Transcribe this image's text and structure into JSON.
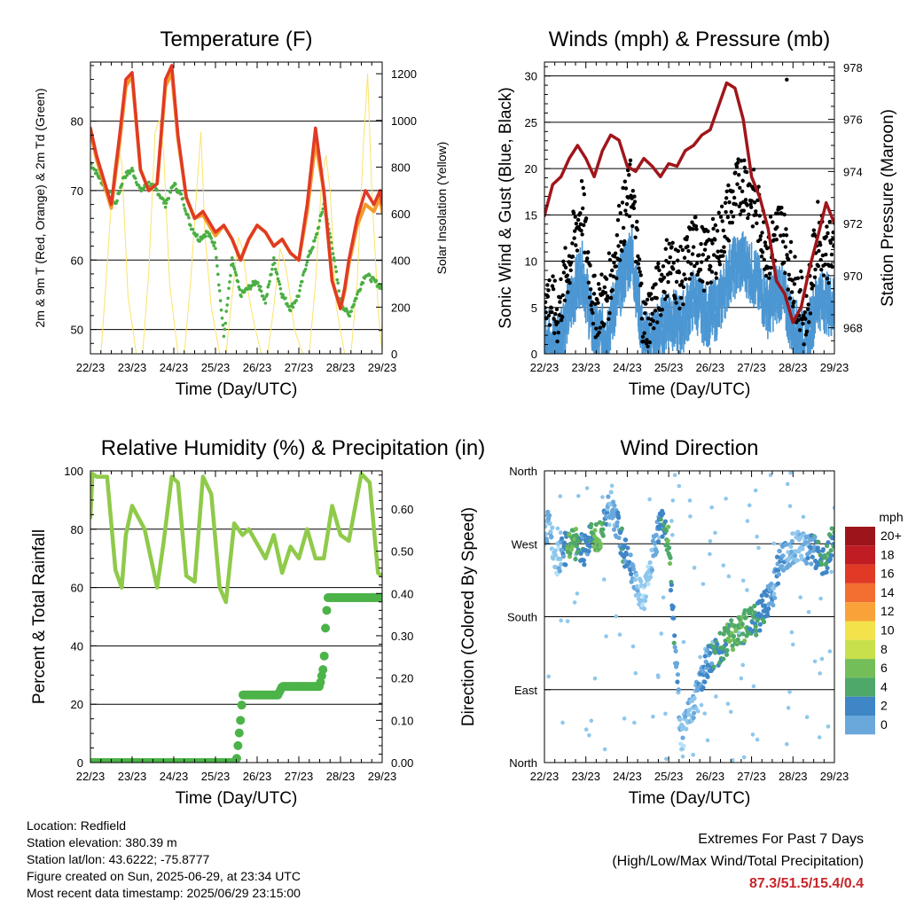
{
  "time_ticks": [
    "22/23",
    "23/23",
    "24/23",
    "25/23",
    "26/23",
    "27/23",
    "28/23",
    "29/23"
  ],
  "colors": {
    "temp2m": "#e03a26",
    "temp9m": "#f39a2b",
    "dew": "#4aaf42",
    "solar": "#fbe36a",
    "sonic": "#4c97d3",
    "gust": "#000000",
    "pressure": "#a0161b",
    "rh": "#8fca4a",
    "precip": "#4cb348",
    "speed_scale": [
      "#b7e3f8",
      "#8fc7ec",
      "#6aa8dc",
      "#3f86c7",
      "#4da86a",
      "#74be59",
      "#c8e04b",
      "#f3e24a",
      "#f9a23a",
      "#f26e31",
      "#e03a26",
      "#c01c23",
      "#9c151b"
    ]
  },
  "chart_data": [
    {
      "id": "temperature",
      "type": "line",
      "title": "Temperature (F)",
      "xlabel": "Time (Day/UTC)",
      "ylabel": "2m & 9m T (Red, Orange) & 2m Td (Green)",
      "y2label": "Solar Insolation (Yellow)",
      "xlim": [
        0,
        7
      ],
      "ylim": [
        46.5,
        88.5
      ],
      "y2lim": [
        0,
        1250
      ],
      "yticks": [
        50,
        60,
        70,
        80
      ],
      "y2ticks": [
        0,
        200,
        400,
        600,
        800,
        1000,
        1200
      ],
      "series": [
        {
          "key": "temp2m",
          "x": [
            0,
            0.15,
            0.3,
            0.5,
            0.7,
            0.85,
            1,
            1.2,
            1.4,
            1.6,
            1.8,
            1.95,
            2.1,
            2.3,
            2.5,
            2.7,
            2.9,
            3.0,
            3.2,
            3.4,
            3.6,
            3.8,
            4.0,
            4.2,
            4.4,
            4.6,
            4.8,
            5.0,
            5.2,
            5.4,
            5.6,
            5.8,
            6.0,
            6.1,
            6.2,
            6.4,
            6.6,
            6.8,
            6.95,
            7.0
          ],
          "y": [
            79,
            75,
            72,
            68,
            78,
            86,
            87,
            73,
            70,
            71,
            86,
            88,
            78,
            69,
            66,
            67,
            65,
            64,
            65,
            63,
            60,
            63,
            65,
            64,
            62,
            63,
            61,
            60,
            68,
            79,
            70,
            57,
            53,
            56,
            60,
            66,
            70,
            68,
            70,
            68
          ]
        },
        {
          "key": "temp9m",
          "x": [
            0,
            0.15,
            0.3,
            0.5,
            0.7,
            0.85,
            1,
            1.2,
            1.4,
            1.6,
            1.8,
            1.95,
            2.1,
            2.3,
            2.5,
            2.7,
            2.9,
            3.0,
            3.2,
            3.4,
            3.6,
            3.8,
            4.0,
            4.2,
            4.4,
            4.6,
            4.8,
            5.0,
            5.2,
            5.4,
            5.6,
            5.8,
            6.0,
            6.1,
            6.2,
            6.4,
            6.6,
            6.8,
            6.95,
            7.0
          ],
          "y": [
            78.5,
            74.5,
            71.5,
            67.5,
            77,
            85,
            86.5,
            73,
            70,
            71,
            85,
            87,
            77.5,
            69,
            66,
            66.5,
            64.5,
            63.5,
            65,
            63,
            60,
            63,
            65,
            64,
            62,
            63,
            61,
            60,
            67,
            77,
            70,
            57,
            53,
            55.5,
            59.5,
            65,
            68,
            67,
            69,
            67
          ]
        },
        {
          "key": "dew",
          "x": [
            0,
            0.2,
            0.4,
            0.6,
            0.8,
            1.0,
            1.2,
            1.4,
            1.6,
            1.8,
            2.0,
            2.2,
            2.4,
            2.6,
            2.8,
            3.0,
            3.2,
            3.4,
            3.6,
            3.8,
            4.0,
            4.2,
            4.4,
            4.6,
            4.8,
            5.0,
            5.2,
            5.4,
            5.6,
            5.8,
            6.0,
            6.2,
            6.4,
            6.6,
            6.8,
            7.0
          ],
          "y": [
            74,
            72,
            70,
            68,
            72,
            73,
            70,
            71,
            70,
            68,
            71,
            69,
            65,
            63,
            64,
            62,
            49,
            60,
            55,
            56,
            57,
            54,
            60,
            55,
            53,
            55,
            60,
            63,
            68,
            62,
            54,
            52,
            55,
            58,
            57,
            56
          ]
        },
        {
          "key": "solar",
          "x": [
            0,
            0.25,
            0.35,
            0.55,
            0.65,
            0.75,
            0.9,
            1.1,
            1.25,
            1.4,
            1.55,
            1.65,
            1.75,
            1.9,
            2.1,
            2.25,
            2.4,
            2.55,
            2.65,
            2.75,
            2.9,
            3.1,
            3.25,
            3.4,
            3.55,
            3.65,
            3.75,
            3.9,
            4.1,
            4.25,
            4.4,
            4.55,
            4.65,
            4.75,
            4.9,
            5.1,
            5.25,
            5.4,
            5.55,
            5.65,
            5.75,
            5.9,
            6.1,
            6.25,
            6.4,
            6.55,
            6.65,
            6.75,
            6.9,
            7.0
          ],
          "y": [
            0,
            0,
            250,
            780,
            900,
            820,
            250,
            0,
            0,
            350,
            950,
            1000,
            880,
            300,
            0,
            0,
            300,
            700,
            950,
            500,
            200,
            0,
            0,
            250,
            500,
            450,
            300,
            150,
            0,
            0,
            200,
            450,
            400,
            300,
            100,
            0,
            0,
            300,
            750,
            850,
            700,
            200,
            0,
            0,
            300,
            900,
            1200,
            700,
            200,
            0
          ]
        }
      ]
    },
    {
      "id": "winds",
      "type": "scatter",
      "title": "Winds (mph) & Pressure (mb)",
      "xlabel": "Time (Day/UTC)",
      "ylabel": "Sonic Wind & Gust (Blue, Black)",
      "y2label": "Station Pressure (Maroon)",
      "xlim": [
        0,
        7
      ],
      "ylim": [
        0,
        31.5
      ],
      "y2lim": [
        967.0,
        978.2
      ],
      "yticks": [
        0,
        5,
        10,
        15,
        20,
        25,
        30
      ],
      "y2ticks": [
        968,
        970,
        972,
        974,
        976,
        978
      ],
      "series": [
        {
          "key": "sonic",
          "name": "",
          "x": [
            0,
            0.3,
            0.6,
            0.9,
            1.2,
            1.5,
            1.8,
            2.1,
            2.4,
            2.7,
            3.0,
            3.3,
            3.6,
            3.9,
            4.2,
            4.5,
            4.8,
            5.1,
            5.4,
            5.7,
            6.0,
            6.3,
            6.6,
            7.0
          ],
          "y": [
            3,
            2,
            6,
            10,
            3,
            3,
            8,
            12,
            2,
            3,
            5,
            4,
            7,
            5,
            6,
            10,
            11,
            9,
            6,
            8,
            4,
            2,
            7,
            6
          ]
        },
        {
          "key": "gust",
          "name": "",
          "x": [
            0,
            0.3,
            0.6,
            0.9,
            1.2,
            1.5,
            1.8,
            2.1,
            2.4,
            2.7,
            3.0,
            3.3,
            3.6,
            3.9,
            4.2,
            4.5,
            4.8,
            5.1,
            5.4,
            5.7,
            6.0,
            6.3,
            6.6,
            7.0
          ],
          "y": [
            7,
            4,
            10,
            16,
            5,
            6,
            13,
            18,
            3,
            6,
            10,
            8,
            12,
            10,
            12,
            16,
            19,
            16,
            11,
            14,
            8,
            4,
            13,
            10
          ]
        },
        {
          "key": "pressure",
          "name": "",
          "x": [
            0,
            0.2,
            0.4,
            0.6,
            0.8,
            1.0,
            1.2,
            1.4,
            1.6,
            1.8,
            2.0,
            2.2,
            2.4,
            2.6,
            2.8,
            3.0,
            3.2,
            3.4,
            3.6,
            3.8,
            4.0,
            4.2,
            4.4,
            4.6,
            4.8,
            5.0,
            5.2,
            5.4,
            5.6,
            5.8,
            6.0,
            6.2,
            6.4,
            6.6,
            6.8,
            7.0
          ],
          "y": [
            972.3,
            973.5,
            973.8,
            974.5,
            975.0,
            974.5,
            973.8,
            974.8,
            975.4,
            975.2,
            974.2,
            974.0,
            974.5,
            974.2,
            973.8,
            974.3,
            974.2,
            974.8,
            975.0,
            975.4,
            975.6,
            976.5,
            977.4,
            977.2,
            976.0,
            973.8,
            973.0,
            971.8,
            969.8,
            969.3,
            968.2,
            968.8,
            970.3,
            971.5,
            972.8,
            972.0
          ]
        }
      ]
    },
    {
      "id": "humidity",
      "type": "line",
      "title": "Relative Humidity (%) & Precipitation (in)",
      "xlabel": "Time (Day/UTC)",
      "ylabel": "Percent & Total Rainfall",
      "xlim": [
        0,
        7
      ],
      "ylim": [
        0,
        100
      ],
      "y2lim": [
        0,
        0.69
      ],
      "yticks": [
        0,
        20,
        40,
        60,
        80,
        100
      ],
      "y2ticks": [
        0.0,
        0.1,
        0.2,
        0.3,
        0.4,
        0.5,
        0.6
      ],
      "series": [
        {
          "key": "rh",
          "x": [
            0,
            0.05,
            0.15,
            0.4,
            0.6,
            0.75,
            0.85,
            1.0,
            1.3,
            1.6,
            1.75,
            1.95,
            2.1,
            2.3,
            2.5,
            2.7,
            2.9,
            3.1,
            3.25,
            3.45,
            3.65,
            3.8,
            4.0,
            4.2,
            4.4,
            4.6,
            4.8,
            5.0,
            5.2,
            5.4,
            5.6,
            5.8,
            6.0,
            6.2,
            6.5,
            6.7,
            6.9,
            7.0
          ],
          "y": [
            84,
            99,
            98,
            98,
            66,
            60,
            78,
            88,
            80,
            60,
            75,
            98,
            96,
            64,
            62,
            98,
            92,
            60,
            55,
            82,
            78,
            80,
            75,
            70,
            78,
            65,
            74,
            70,
            80,
            70,
            70,
            88,
            78,
            76,
            99,
            96,
            65,
            64
          ]
        },
        {
          "key": "precip",
          "x": [
            0,
            3.5,
            3.55,
            3.6,
            3.65,
            4.5,
            4.6,
            5.0,
            5.5,
            5.6,
            5.65,
            5.7,
            6.0,
            7.0
          ],
          "y": [
            0,
            0,
            0.05,
            0.1,
            0.16,
            0.16,
            0.18,
            0.18,
            0.18,
            0.23,
            0.34,
            0.39,
            0.39,
            0.39
          ]
        }
      ]
    },
    {
      "id": "direction",
      "type": "scatter",
      "title": "Wind Direction",
      "xlabel": "Time (Day/UTC)",
      "ylabel": "Direction (Colored By Speed)",
      "xlim": [
        0,
        7
      ],
      "ylim": [
        0,
        360
      ],
      "yticklabels": [
        "North",
        "East",
        "South",
        "West",
        "North"
      ],
      "legend_title": "mph",
      "legend_labels": [
        "20+",
        "18",
        "16",
        "14",
        "12",
        "10",
        "8",
        "6",
        "4",
        "2",
        "0"
      ],
      "series": [
        {
          "key": "direction",
          "x": [
            0.1,
            0.3,
            0.6,
            0.8,
            1.0,
            1.1,
            1.3,
            1.6,
            1.9,
            2.4,
            2.6,
            2.8,
            3.0,
            3.3,
            3.5,
            3.7,
            4.0,
            4.3,
            4.6,
            4.9,
            5.1,
            5.3,
            5.5,
            5.7,
            6.0,
            6.2,
            6.5,
            6.8,
            7.0
          ],
          "y": [
            290,
            250,
            270,
            270,
            260,
            275,
            275,
            320,
            265,
            200,
            255,
            300,
            270,
            30,
            60,
            90,
            130,
            145,
            160,
            170,
            175,
            190,
            210,
            250,
            265,
            270,
            260,
            250,
            280
          ],
          "speed": [
            3,
            1,
            9,
            8,
            5,
            7,
            10,
            3,
            7,
            1,
            2,
            6,
            9,
            2,
            3,
            4,
            6,
            7,
            9,
            8,
            7,
            6,
            4,
            5,
            3,
            2,
            6,
            7,
            7
          ]
        }
      ]
    }
  ],
  "info": {
    "location": "Location: Redfield",
    "elevation": "Station elevation: 380.39 m",
    "latlon": "Station lat/lon: 43.6222; -75.8777",
    "created": "Figure created on Sun, 2025-06-29, at 23:34 UTC",
    "recent": "Most recent data timestamp: 2025/06/29 23:15:00",
    "extremes_title": "Extremes For Past 7 Days",
    "extremes_sub": "(High/Low/Max Wind/Total Precipitation)",
    "extremes_values": "87.3/51.5/15.4/0.4"
  }
}
